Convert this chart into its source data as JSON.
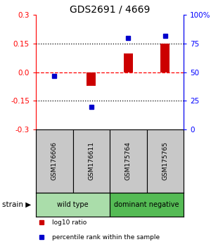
{
  "title": "GDS2691 / 4669",
  "samples": [
    "GSM176606",
    "GSM176611",
    "GSM175764",
    "GSM175765"
  ],
  "log10_ratio": [
    0.0,
    -0.07,
    0.1,
    0.15
  ],
  "percentile_rank": [
    47,
    20,
    80,
    82
  ],
  "bar_color": "#cc0000",
  "dot_color": "#0000cc",
  "ylim": [
    -0.3,
    0.3
  ],
  "y_left_ticks": [
    0.3,
    0.15,
    0.0,
    -0.15,
    -0.3
  ],
  "y_right_ticks": [
    100,
    75,
    50,
    25,
    0
  ],
  "black_dotted_lines": [
    0.15,
    -0.15
  ],
  "red_dashed_line": 0.0,
  "groups": [
    {
      "label": "wild type",
      "cols": [
        0,
        1
      ],
      "color": "#aaddaa"
    },
    {
      "label": "dominant negative",
      "cols": [
        2,
        3
      ],
      "color": "#55bb55"
    }
  ],
  "legend_items": [
    {
      "color": "#cc0000",
      "label": "log10 ratio"
    },
    {
      "color": "#0000cc",
      "label": "percentile rank within the sample"
    }
  ],
  "background_color": "#ffffff",
  "sample_cell_color": "#c8c8c8",
  "title_fontsize": 10,
  "tick_fontsize": 7.5,
  "bar_width": 0.25
}
